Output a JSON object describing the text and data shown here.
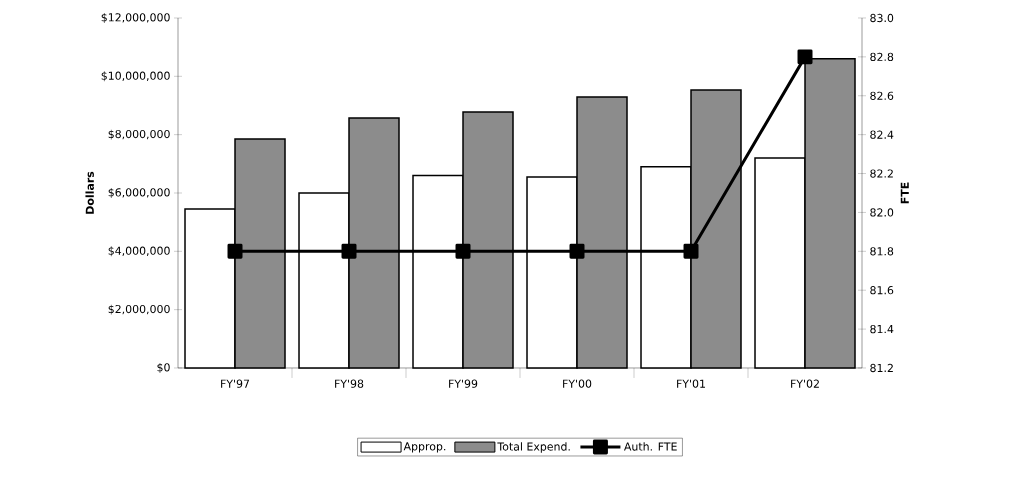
{
  "chart_data": {
    "type": "bar",
    "ylabel": "Dollars",
    "y2label": "FTE",
    "categories": [
      "FY'97",
      "FY'98",
      "FY'99",
      "FY'00",
      "FY'01",
      "FY'02"
    ],
    "series": [
      {
        "name": "Approp.",
        "color": "#ffffff",
        "values": [
          5450000,
          6000000,
          6600000,
          6550000,
          6900000,
          7200000
        ]
      },
      {
        "name": "Total Expend.",
        "color": "#8c8c8c",
        "values": [
          7850000,
          8570000,
          8780000,
          9290000,
          9530000,
          10600000
        ]
      },
      {
        "name": "Auth. FTE",
        "type": "line",
        "axis": "y2",
        "color": "#000000",
        "marker": "square",
        "values": [
          81.8,
          81.8,
          81.8,
          81.8,
          81.8,
          82.8
        ]
      }
    ],
    "ylim": [
      0,
      12000000
    ],
    "yticks": [
      {
        "value": 0,
        "label": "$0"
      },
      {
        "value": 2000000,
        "label": "$2,000,000"
      },
      {
        "value": 4000000,
        "label": "$4,000,000"
      },
      {
        "value": 6000000,
        "label": "$6,000,000"
      },
      {
        "value": 8000000,
        "label": "$8,000,000"
      },
      {
        "value": 10000000,
        "label": "$10,000,000"
      },
      {
        "value": 12000000,
        "label": "$12,000,000"
      }
    ],
    "y2lim": [
      81.2,
      83.0
    ],
    "y2ticks": [
      {
        "value": 81.2,
        "label": "81.2"
      },
      {
        "value": 81.4,
        "label": "81.4"
      },
      {
        "value": 81.6,
        "label": "81.6"
      },
      {
        "value": 81.8,
        "label": "81.8"
      },
      {
        "value": 82.0,
        "label": "82.0"
      },
      {
        "value": 82.2,
        "label": "82.2"
      },
      {
        "value": 82.4,
        "label": "82.4"
      },
      {
        "value": 82.6,
        "label": "82.6"
      },
      {
        "value": 82.8,
        "label": "82.8"
      },
      {
        "value": 83.0,
        "label": "83.0"
      }
    ],
    "legend": "bottom",
    "grid": false
  }
}
